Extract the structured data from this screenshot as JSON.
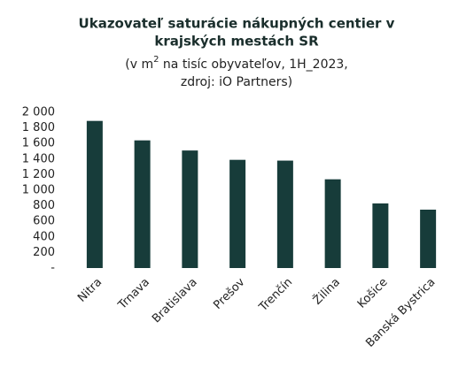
{
  "chart_data": {
    "type": "bar",
    "title": [
      "Ukazovateľ saturácie nákupných centier v",
      "krajských mestách SR"
    ],
    "subtitle": [
      "(v m",
      "2",
      " na tisíc obyvateľov, 1H_2023,",
      "zdroj: iO Partners)"
    ],
    "categories": [
      "Nitra",
      "Trnava",
      "Bratislava",
      "Prešov",
      "Trenčín",
      "Žilina",
      "Košice",
      "Banská Bystrica"
    ],
    "values": [
      1890,
      1640,
      1510,
      1390,
      1380,
      1140,
      830,
      750
    ],
    "color": "#173c3a",
    "ylim": [
      0,
      2000
    ],
    "yticks": [
      {
        "value": 0,
        "label": "-"
      },
      200,
      400,
      600,
      800,
      {
        "value": 1000,
        "label": "1 000"
      },
      {
        "value": 1200,
        "label": "1 200"
      },
      {
        "value": 1400,
        "label": "1 400"
      },
      {
        "value": 1600,
        "label": "1 600"
      },
      {
        "value": 1800,
        "label": "1 800"
      },
      {
        "value": 2000,
        "label": "2 000"
      }
    ],
    "grid": false
  }
}
